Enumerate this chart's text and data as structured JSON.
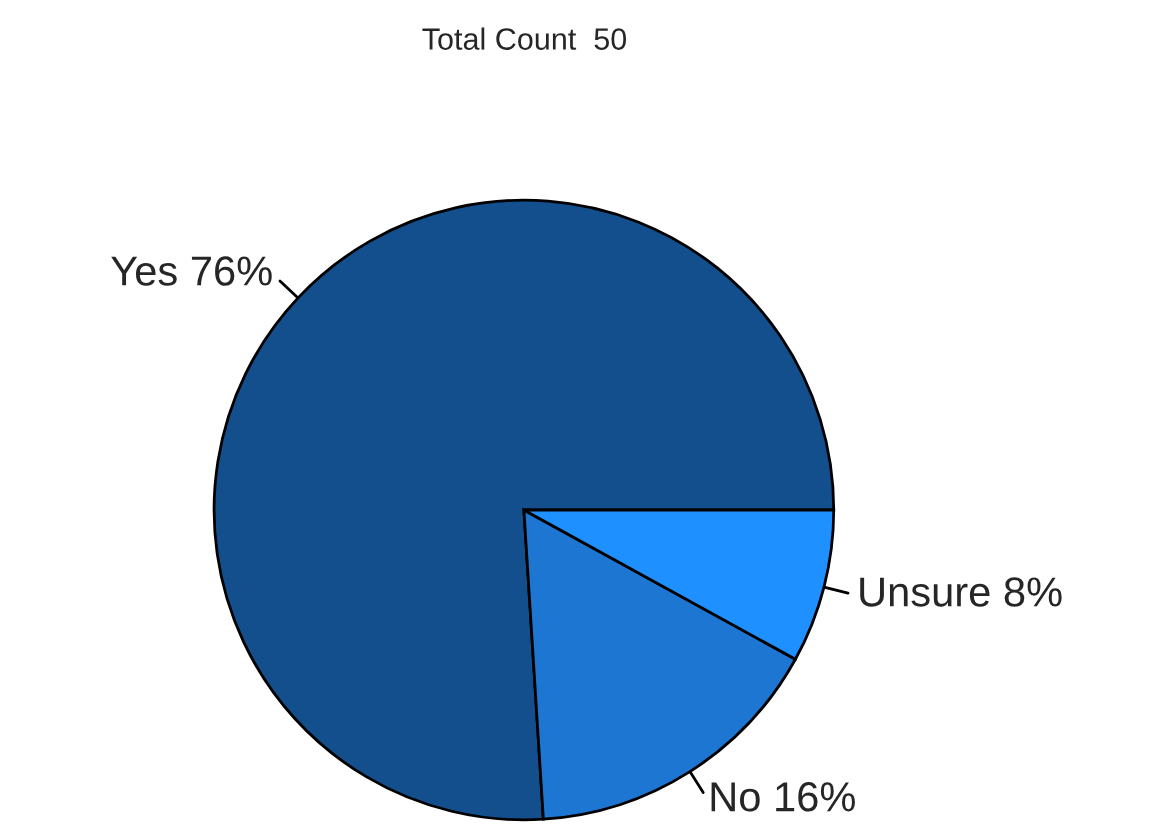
{
  "chart_data": {
    "type": "pie",
    "title": "Total Count  50",
    "categories": [
      "Yes",
      "No",
      "Unsure"
    ],
    "values": [
      76,
      16,
      8
    ],
    "value_labels": [
      "76%",
      "16%",
      "8%"
    ],
    "colors": [
      "#134f8c",
      "#1c76d2",
      "#1e90ff"
    ],
    "legend": false
  }
}
